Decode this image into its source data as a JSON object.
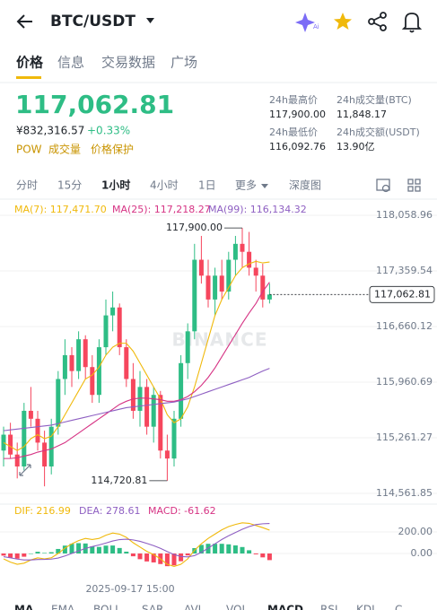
{
  "header": {
    "pair": "BTC/USDT"
  },
  "tabs": [
    "价格",
    "信息",
    "交易数据",
    "广场"
  ],
  "price": {
    "last": "117,062.81",
    "cny": "¥832,316.57",
    "change": "+0.33%"
  },
  "tags": [
    "POW",
    "成交量",
    "价格保护"
  ],
  "stats": [
    {
      "label": "24h最高价",
      "value": "117,900.00"
    },
    {
      "label": "24h成交量(BTC)",
      "value": "11,848.17"
    },
    {
      "label": "24h最低价",
      "value": "116,092.76"
    },
    {
      "label": "24h成交额(USDT)",
      "value": "13.90亿"
    }
  ],
  "intervals": [
    "分时",
    "15分",
    "1小时",
    "4小时",
    "1日",
    "更多",
    "深度图"
  ],
  "chart_data": {
    "type": "candlestick",
    "watermark": "BINANCE",
    "ylim": [
      114505,
      118172
    ],
    "yticks": [
      {
        "value": 118058.96,
        "label": "118,058.96"
      },
      {
        "value": 117359.54,
        "label": "117,359.54"
      },
      {
        "value": 116660.12,
        "label": "116,660.12"
      },
      {
        "value": 115960.69,
        "label": "115,960.69"
      },
      {
        "value": 115261.27,
        "label": "115,261.27"
      },
      {
        "value": 114561.85,
        "label": "114,561.85"
      }
    ],
    "up_color": "#2ebd85",
    "down_color": "#f6465d",
    "candles": [
      [
        115100,
        115400,
        114900,
        115300
      ],
      [
        115300,
        115450,
        115000,
        115050
      ],
      [
        115050,
        115200,
        114750,
        114900
      ],
      [
        114900,
        115700,
        114850,
        115600
      ],
      [
        115600,
        115900,
        115400,
        115500
      ],
      [
        115500,
        115600,
        115100,
        115200
      ],
      [
        115200,
        115350,
        114650,
        114900
      ],
      [
        114900,
        115500,
        114800,
        115400
      ],
      [
        115400,
        116100,
        115300,
        116000
      ],
      [
        116000,
        116500,
        115800,
        116300
      ],
      [
        116300,
        116400,
        115900,
        116100
      ],
      [
        116100,
        116600,
        116000,
        116500
      ],
      [
        116500,
        116550,
        116000,
        116150
      ],
      [
        116150,
        116300,
        115700,
        115800
      ],
      [
        115800,
        116500,
        115700,
        116400
      ],
      [
        116400,
        117000,
        116300,
        116800
      ],
      [
        116800,
        117100,
        116600,
        116900
      ],
      [
        116900,
        116950,
        116300,
        116400
      ],
      [
        116400,
        116500,
        115900,
        116000
      ],
      [
        116000,
        116200,
        115500,
        115600
      ],
      [
        115600,
        116100,
        115400,
        115900
      ],
      [
        115900,
        116000,
        115300,
        115400
      ],
      [
        115400,
        115900,
        115200,
        115800
      ],
      [
        115800,
        115850,
        115000,
        115100
      ],
      [
        115100,
        115300,
        114720.81,
        115000
      ],
      [
        115000,
        115600,
        114900,
        115500
      ],
      [
        115500,
        116300,
        115400,
        116200
      ],
      [
        116200,
        116700,
        116000,
        116600
      ],
      [
        116600,
        117700,
        116500,
        117500
      ],
      [
        117500,
        117800,
        117200,
        117300
      ],
      [
        117300,
        117500,
        116900,
        117000
      ],
      [
        117000,
        117400,
        116800,
        117300
      ],
      [
        117300,
        117500,
        117000,
        117100
      ],
      [
        117100,
        117600,
        117000,
        117500
      ],
      [
        117500,
        117800,
        117300,
        117700
      ],
      [
        117700,
        117900,
        117400,
        117600
      ],
      [
        117600,
        117850,
        117300,
        117400
      ],
      [
        117400,
        117500,
        117100,
        117300
      ],
      [
        117300,
        117450,
        116900,
        117000
      ],
      [
        117000,
        117200,
        116950,
        117062.81
      ]
    ],
    "series": [
      {
        "name": "MA(7): 117,471.70",
        "color": "#f0b90b",
        "values": [
          115200,
          115150,
          115100,
          115150,
          115250,
          115300,
          115250,
          115280,
          115400,
          115550,
          115700,
          115850,
          116000,
          116050,
          116150,
          116300,
          116400,
          116450,
          116450,
          116350,
          116200,
          116050,
          115900,
          115750,
          115550,
          115450,
          115500,
          115650,
          115900,
          116200,
          116500,
          116800,
          117000,
          117150,
          117300,
          117400,
          117450,
          117480,
          117460,
          117471.7
        ]
      },
      {
        "name": "MA(25): 117,218.27",
        "color": "#d63384",
        "values": [
          115000,
          115000,
          115010,
          115030,
          115050,
          115080,
          115100,
          115120,
          115160,
          115200,
          115260,
          115320,
          115380,
          115440,
          115500,
          115560,
          115620,
          115680,
          115720,
          115750,
          115760,
          115760,
          115750,
          115740,
          115720,
          115720,
          115740,
          115780,
          115840,
          115920,
          116020,
          116140,
          116280,
          116420,
          116560,
          116700,
          116830,
          116950,
          117100,
          117218.27
        ]
      },
      {
        "name": "MA(99): 116,134.32",
        "color": "#8e5fc2",
        "values": [
          115350,
          115360,
          115370,
          115380,
          115390,
          115400,
          115410,
          115420,
          115440,
          115460,
          115480,
          115500,
          115520,
          115540,
          115560,
          115580,
          115600,
          115620,
          115640,
          115650,
          115660,
          115670,
          115680,
          115690,
          115700,
          115710,
          115730,
          115750,
          115780,
          115810,
          115840,
          115870,
          115900,
          115930,
          115960,
          115990,
          116020,
          116060,
          116100,
          116134.32
        ]
      }
    ],
    "last_price": {
      "value": 117062.81,
      "label": "117,062.81"
    },
    "annotations": [
      {
        "text": "117,900.00",
        "candle": 35
      },
      {
        "text": "114,720.81",
        "candle": 24
      }
    ],
    "time_label": "2025-09-17 15:00",
    "macd": {
      "ylim": [
        -250,
        350
      ],
      "yticks": [
        {
          "value": 200,
          "label": "200.00"
        },
        {
          "value": 0,
          "label": "0.00"
        }
      ],
      "series": [
        {
          "name": "DIF: 216.99",
          "color": "#f0b90b",
          "values": [
            -50,
            -80,
            -100,
            -90,
            -60,
            -40,
            -50,
            -40,
            0,
            50,
            90,
            120,
            140,
            130,
            140,
            170,
            190,
            180,
            150,
            100,
            60,
            20,
            -10,
            -50,
            -100,
            -120,
            -100,
            -50,
            30,
            90,
            140,
            180,
            220,
            250,
            270,
            285,
            280,
            260,
            240,
            216.99
          ]
        },
        {
          "name": "DEA: 278.61",
          "color": "#8e5fc2",
          "values": [
            -30,
            -40,
            -52,
            -60,
            -60,
            -56,
            -55,
            -52,
            -42,
            -23,
            0,
            24,
            47,
            64,
            79,
            97,
            116,
            129,
            133,
            126,
            113,
            94,
            73,
            48,
            18,
            -10,
            -28,
            -32,
            -20,
            10,
            50,
            90,
            130,
            165,
            195,
            225,
            250,
            268,
            276,
            278.61
          ]
        }
      ],
      "histogram": {
        "name": "MACD: -61.62",
        "color": "#d63384",
        "values": [
          -20,
          -40,
          -48,
          -30,
          0,
          16,
          5,
          12,
          42,
          73,
          90,
          96,
          93,
          66,
          61,
          73,
          74,
          51,
          17,
          -26,
          -53,
          -74,
          -83,
          -98,
          -118,
          -110,
          -72,
          -18,
          50,
          80,
          90,
          90,
          90,
          85,
          75,
          60,
          30,
          -8,
          -36,
          -61.62
        ]
      }
    }
  },
  "indicators": [
    "MA",
    "EMA",
    "BOLL",
    "SAR",
    "AVL",
    "VOL",
    "MACD",
    "RSI",
    "KDJ",
    "C"
  ]
}
